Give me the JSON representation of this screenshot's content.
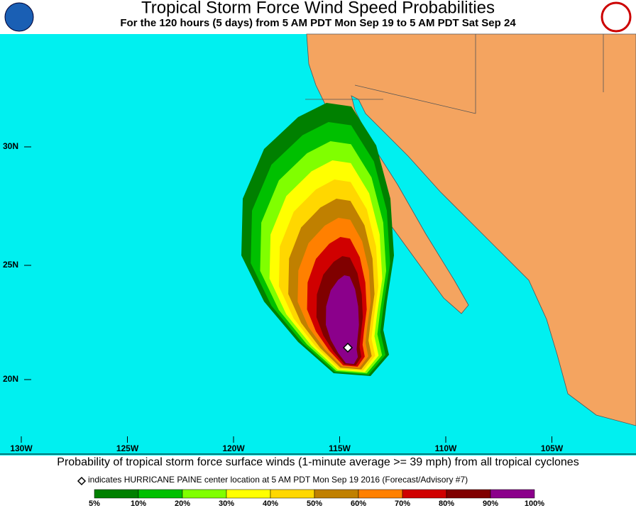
{
  "header": {
    "title": "Tropical Storm Force Wind Speed Probabilities",
    "subtitle": "For the 120 hours (5 days) from 5 AM PDT Mon Sep 19 to 5 AM PDT Sat Sep 24"
  },
  "map": {
    "lat_labels": [
      "30N",
      "25N",
      "20N"
    ],
    "lon_labels": [
      "130W",
      "125W",
      "120W",
      "115W",
      "110W",
      "105W"
    ]
  },
  "caption": "Probability of tropical storm force surface winds (1-minute average >= 39 mph) from all tropical cyclones",
  "note": "indicates HURRICANE PAINE center location at 5 AM PDT Mon Sep 19 2016 (Forecast/Advisory #7)",
  "legend": {
    "labels": [
      "5%",
      "10%",
      "20%",
      "30%",
      "40%",
      "50%",
      "60%",
      "70%",
      "80%",
      "90%",
      "100%"
    ],
    "colors": [
      "#008000",
      "#00c000",
      "#80ff00",
      "#ffff00",
      "#ffd700",
      "#c08000",
      "#ff8000",
      "#d00000",
      "#800000",
      "#8b008b"
    ]
  }
}
